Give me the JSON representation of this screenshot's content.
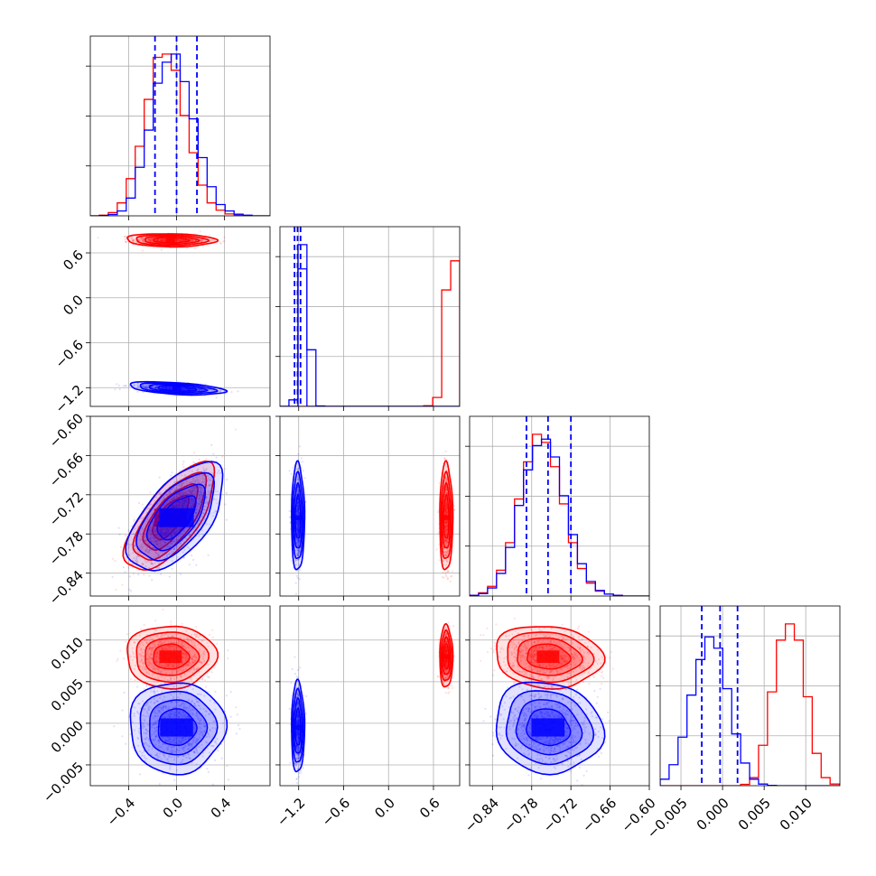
{
  "chart_data": {
    "type": "corner",
    "grid": true,
    "colors": {
      "red": "#ff0000",
      "blue": "#0000ff"
    },
    "series": [
      {
        "color": "#ff0000",
        "mean": [
          -0.05,
          0.77,
          -0.755,
          0.008
        ],
        "std": [
          0.15,
          0.035,
          0.033,
          0.0015
        ],
        "corr_01": -0.1,
        "corr_02": 0.7,
        "corr_23": -0.1
      },
      {
        "color": "#0000ff",
        "mean": [
          0.0,
          -1.21,
          -0.755,
          -0.0005
        ],
        "std": [
          0.16,
          0.035,
          0.033,
          0.0022
        ],
        "corr_01": -0.45,
        "corr_02": 0.6,
        "corr_23": -0.1
      }
    ],
    "quantile_lines": [
      [
        -0.18,
        0.0,
        0.17
      ],
      [
        -1.255,
        -1.215,
        -1.175
      ],
      [
        -0.788,
        -0.755,
        -0.72
      ],
      [
        -0.0025,
        -0.0003,
        0.0018
      ]
    ],
    "params": [
      {
        "range": [
          -0.72,
          0.78
        ],
        "ticks": [
          -0.4,
          0.0,
          0.4
        ],
        "tick_labels": [
          "−0.4",
          "0.0",
          "0.4"
        ]
      },
      {
        "range": [
          -1.45,
          0.95
        ],
        "ticks": [
          -1.2,
          -0.6,
          0.0,
          0.6
        ],
        "tick_labels": [
          "−1.2",
          "−0.6",
          "0.0",
          "0.6"
        ]
      },
      {
        "range": [
          -0.875,
          -0.6
        ],
        "ticks": [
          -0.84,
          -0.78,
          -0.72,
          -0.66,
          -0.6
        ],
        "tick_labels": [
          "−0.84",
          "−0.78",
          "−0.72",
          "−0.66",
          "−0.60"
        ]
      },
      {
        "range": [
          -0.0075,
          0.0141
        ],
        "ticks": [
          -0.005,
          0.0,
          0.005,
          0.01
        ],
        "tick_labels": [
          "−0.005",
          "0.000",
          "0.005",
          "0.010"
        ]
      }
    ],
    "hist": {
      "p0": {
        "edges": [
          -0.72,
          -0.645,
          -0.57,
          -0.495,
          -0.42,
          -0.345,
          -0.27,
          -0.195,
          -0.12,
          -0.045,
          0.03,
          0.105,
          0.18,
          0.255,
          0.33,
          0.405,
          0.48,
          0.555,
          0.63,
          0.705,
          0.78
        ],
        "red": [
          0,
          0.004,
          0.02,
          0.08,
          0.23,
          0.43,
          0.72,
          0.98,
          1.0,
          0.9,
          0.62,
          0.39,
          0.19,
          0.08,
          0.035,
          0.012,
          0.004,
          0,
          0,
          0
        ],
        "blue": [
          0,
          0.002,
          0.008,
          0.03,
          0.11,
          0.3,
          0.53,
          0.82,
          0.95,
          1.0,
          0.83,
          0.6,
          0.36,
          0.18,
          0.07,
          0.03,
          0.01,
          0.004,
          0,
          0
        ]
      },
      "p1": {
        "edges": [
          -1.45,
          -1.33,
          -1.21,
          -1.09,
          -0.97,
          -0.85,
          -0.73,
          -0.61,
          -0.49,
          -0.37,
          -0.25,
          -0.13,
          -0.01,
          0.11,
          0.23,
          0.35,
          0.47,
          0.59,
          0.71,
          0.83,
          0.95
        ],
        "red": [
          0,
          0,
          0,
          0,
          0,
          0,
          0,
          0,
          0,
          0,
          0,
          0,
          0,
          0,
          0,
          0,
          0.004,
          0.055,
          0.72,
          0.9
        ],
        "blue": [
          0,
          0.04,
          0.85,
          0.35,
          0.003,
          0,
          0,
          0,
          0,
          0,
          0,
          0,
          0,
          0,
          0,
          0,
          0,
          0,
          0,
          0
        ],
        "blue_sharp": [
          0,
          0,
          1.0,
          0,
          0,
          0,
          0,
          0,
          0,
          0,
          0,
          0,
          0,
          0,
          0,
          0,
          0,
          0,
          0,
          0
        ]
      },
      "p2": {
        "edges": [
          -0.875,
          -0.86125,
          -0.8475,
          -0.83375,
          -0.82,
          -0.80625,
          -0.7925,
          -0.77875,
          -0.765,
          -0.75125,
          -0.7375,
          -0.72375,
          -0.71,
          -0.69625,
          -0.6825,
          -0.66875,
          -0.655,
          -0.64125,
          -0.6275,
          -0.61375,
          -0.6
        ],
        "red": [
          0.005,
          0.02,
          0.06,
          0.16,
          0.33,
          0.6,
          0.83,
          1.0,
          0.95,
          0.8,
          0.57,
          0.33,
          0.17,
          0.08,
          0.03,
          0.012,
          0.005,
          0,
          0,
          0
        ],
        "blue": [
          0.004,
          0.015,
          0.05,
          0.14,
          0.3,
          0.56,
          0.78,
          0.93,
          0.97,
          0.86,
          0.62,
          0.38,
          0.2,
          0.09,
          0.035,
          0.012,
          0.004,
          0,
          0,
          0
        ]
      },
      "p3": {
        "edges": [
          -0.0075,
          -0.006425,
          -0.00535,
          -0.004275,
          -0.0032,
          -0.002125,
          -0.00105,
          2.5e-05,
          0.0011,
          0.002175,
          0.00325,
          0.004325,
          0.0054,
          0.006475,
          0.00755,
          0.008625,
          0.0097,
          0.010775,
          0.01185,
          0.012925,
          0.0141
        ],
        "red": [
          0,
          0,
          0,
          0,
          0,
          0,
          0,
          0,
          0,
          0.008,
          0.05,
          0.25,
          0.58,
          0.9,
          1.0,
          0.9,
          0.55,
          0.2,
          0.05,
          0.01
        ],
        "blue": [
          0.04,
          0.13,
          0.3,
          0.56,
          0.78,
          0.92,
          0.85,
          0.6,
          0.32,
          0.14,
          0.04,
          0.01,
          0.002,
          0,
          0,
          0,
          0,
          0,
          0,
          0
        ]
      }
    }
  }
}
